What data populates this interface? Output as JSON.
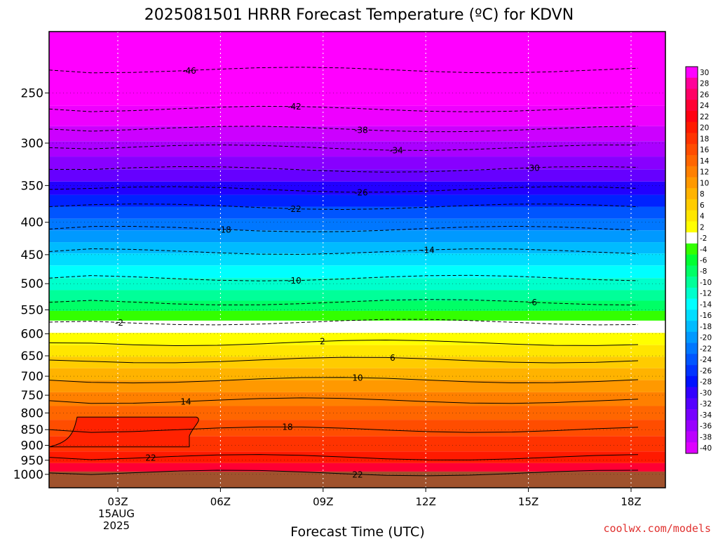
{
  "chart_data": {
    "type": "heatmap",
    "title": "2025081501 HRRR Forecast Temperature (ºC) for KDVN",
    "xlabel": "Forecast Time (UTC)",
    "ylabel": "",
    "x_ticks": [
      "03Z",
      "06Z",
      "09Z",
      "12Z",
      "15Z",
      "18Z"
    ],
    "x_date_label": [
      "15AUG",
      "2025"
    ],
    "y_ticks": [
      250,
      300,
      350,
      400,
      450,
      500,
      550,
      600,
      650,
      700,
      750,
      800,
      850,
      900,
      950,
      1000
    ],
    "y_scale": "log pressure (hPa), top 200 to bottom 1050",
    "colorbar": {
      "labels": [
        "30",
        "28",
        "26",
        "24",
        "22",
        "20",
        "18",
        "16",
        "14",
        "12",
        "10",
        "8",
        "6",
        "4",
        "2",
        "-2",
        "-4",
        "-6",
        "-8",
        "-10",
        "-12",
        "-14",
        "-16",
        "-18",
        "-20",
        "-22",
        "-24",
        "-26",
        "-28",
        "-30",
        "-32",
        "-34",
        "-36",
        "-38",
        "-40"
      ],
      "colors": [
        "#ff00ff",
        "#ff0099",
        "#ff0066",
        "#ff0033",
        "#ff0011",
        "#ff1a00",
        "#ff3300",
        "#ff4d00",
        "#ff6600",
        "#ff8000",
        "#ff9900",
        "#ffb300",
        "#ffcc00",
        "#ffe600",
        "#ffff00",
        "#ffffff",
        "#33ff00",
        "#00ff33",
        "#00ff66",
        "#00ff99",
        "#00ffcc",
        "#00ffff",
        "#00ddff",
        "#00bbff",
        "#0099ff",
        "#0077ff",
        "#0055ff",
        "#0033ff",
        "#0011ff",
        "#3300ff",
        "#5500ff",
        "#7700ff",
        "#9900ff",
        "#bb00ff",
        "#dd00ff"
      ]
    },
    "contours": [
      {
        "label": "-46",
        "pressure": 230,
        "dashed": true
      },
      {
        "label": "-42",
        "pressure": 265,
        "dashed": true
      },
      {
        "label": "-38",
        "pressure": 285,
        "dashed": true
      },
      {
        "label": "-34",
        "pressure": 305,
        "dashed": true
      },
      {
        "label": "-30",
        "pressure": 330,
        "dashed": true
      },
      {
        "label": "-26",
        "pressure": 355,
        "dashed": true
      },
      {
        "label": "-22",
        "pressure": 378,
        "dashed": true
      },
      {
        "label": "-18",
        "pressure": 410,
        "dashed": true
      },
      {
        "label": "-14",
        "pressure": 445,
        "dashed": true
      },
      {
        "label": "-10",
        "pressure": 490,
        "dashed": true
      },
      {
        "label": "-6",
        "pressure": 535,
        "dashed": true
      },
      {
        "label": "-2",
        "pressure": 575,
        "dashed": true
      },
      {
        "label": "2",
        "pressure": 620,
        "dashed": false
      },
      {
        "label": "6",
        "pressure": 660,
        "dashed": false
      },
      {
        "label": "10",
        "pressure": 710,
        "dashed": false
      },
      {
        "label": "14",
        "pressure": 765,
        "dashed": false
      },
      {
        "label": "18",
        "pressure": 850,
        "dashed": false
      },
      {
        "label": "22",
        "pressure": 940,
        "dashed": false
      },
      {
        "label": "22",
        "pressure": 995,
        "dashed": false
      }
    ],
    "surface": {
      "pressure": 990,
      "color": "#a0522d"
    },
    "legend": "right colorbar"
  },
  "watermark": "coolwx.com/models"
}
